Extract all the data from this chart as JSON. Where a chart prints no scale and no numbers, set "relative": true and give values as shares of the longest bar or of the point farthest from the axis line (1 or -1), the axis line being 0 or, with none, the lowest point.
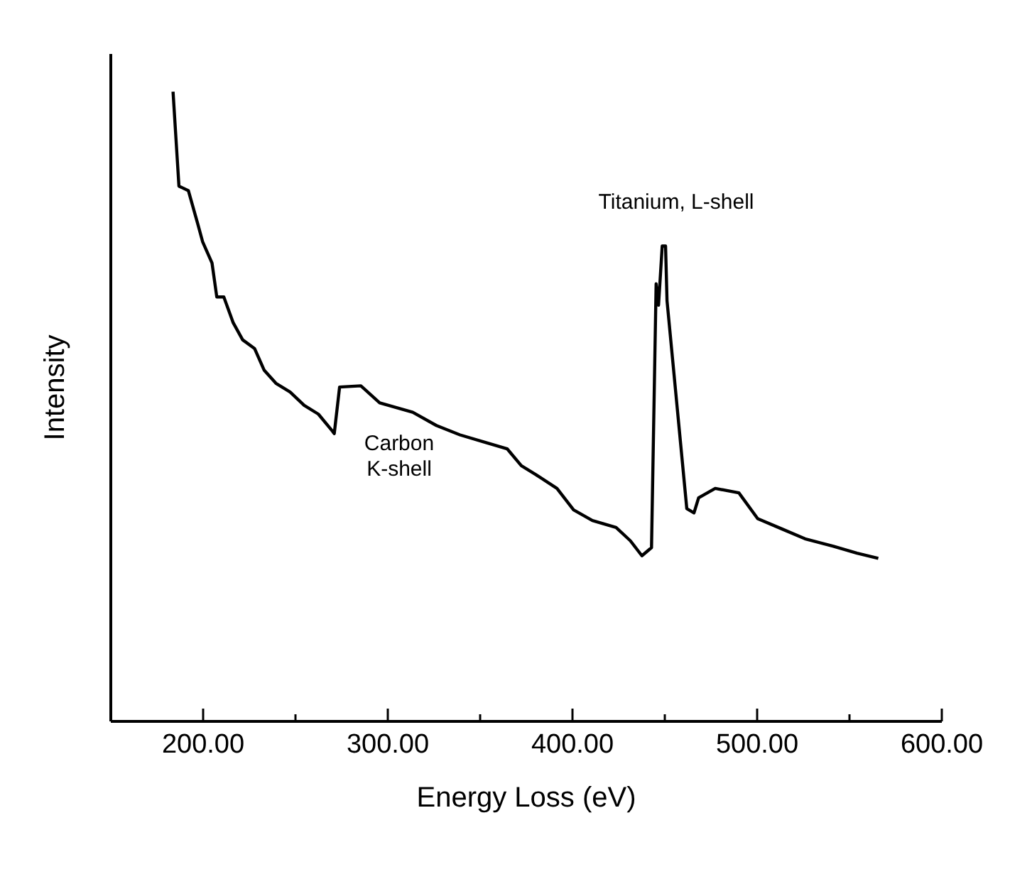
{
  "chart_data": {
    "type": "line",
    "xlabel": "Energy Loss (eV)",
    "ylabel": "Intensity",
    "relative": true,
    "xlim": [
      150,
      600
    ],
    "xticks": [
      {
        "value": 200,
        "label": "200.00"
      },
      {
        "value": 250,
        "label": null
      },
      {
        "value": 300,
        "label": "300.00"
      },
      {
        "value": 350,
        "label": null
      },
      {
        "value": 400,
        "label": "400.00"
      },
      {
        "value": 450,
        "label": null
      },
      {
        "value": 500,
        "label": "500.00"
      },
      {
        "value": 550,
        "label": null
      },
      {
        "value": 600,
        "label": "600.00"
      }
    ],
    "x": [
      183.7,
      186.9,
      192,
      197.2,
      199.7,
      204.8,
      207.4,
      211.2,
      216.3,
      221.4,
      227.9,
      233,
      239.4,
      247.1,
      254.7,
      262.4,
      270,
      271,
      273.9,
      285.4,
      295.6,
      313.5,
      326.3,
      339.1,
      351.9,
      364.6,
      372.3,
      380.1,
      391.6,
      400.6,
      410.8,
      423.6,
      431.3,
      437.6,
      442.8,
      445.3,
      446.6,
      448.6,
      450.4,
      451.2,
      461.9,
      465.8,
      468.3,
      477.3,
      490.1,
      500.3,
      513.1,
      525.9,
      541.3,
      554.1,
      565.6
    ],
    "series": [
      {
        "color": "#000000",
        "values": [
          1.0,
          0.85,
          0.843,
          0.789,
          0.762,
          0.728,
          0.674,
          0.674,
          0.633,
          0.606,
          0.592,
          0.558,
          0.537,
          0.523,
          0.502,
          0.488,
          0.461,
          0.457,
          0.531,
          0.533,
          0.506,
          0.491,
          0.47,
          0.455,
          0.444,
          0.433,
          0.406,
          0.392,
          0.37,
          0.336,
          0.319,
          0.308,
          0.287,
          0.263,
          0.276,
          0.695,
          0.661,
          0.755,
          0.755,
          0.668,
          0.338,
          0.331,
          0.355,
          0.37,
          0.363,
          0.322,
          0.306,
          0.29,
          0.278,
          0.267,
          0.259
        ]
      }
    ],
    "annotations": [
      "Titanium, L-shell",
      "Carbon K-shell"
    ]
  }
}
